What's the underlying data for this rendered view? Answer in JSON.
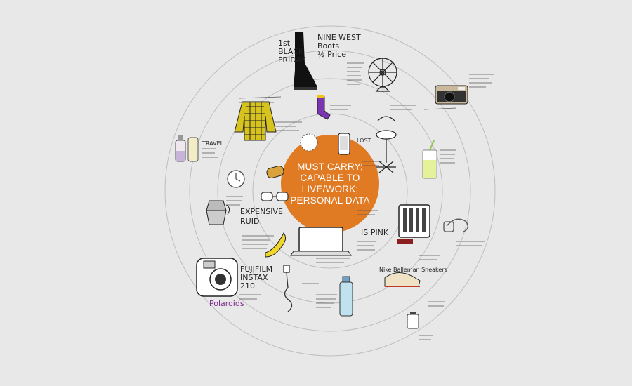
{
  "center": {
    "lines": [
      "MUST CARRY;",
      "CAPABLE TO",
      "LIVE/WORK;",
      "PERSONAL DATA"
    ],
    "color": "#e07a23"
  },
  "notes": {
    "boots_title": "NINE WEST\nBoots\n½ Price",
    "boots_side": "1st\nBLACK\nFRIDAY",
    "expensive": "EXPENSIVE",
    "pink": "IS PINK",
    "polaroids": "Polaroids",
    "ninewest_shoe": "Nike Balleman Sneakers",
    "fujifilm": "FUJIFILM\nINSTAX\n210",
    "travel": "TRAVEL",
    "ruid": "RUID",
    "lost": "LOST"
  },
  "colors": {
    "background": "#e8e8e8",
    "ring": "#bdbdbd",
    "center": "#e07a23",
    "ink": "#222222",
    "accent_purple": "#7a2a8a"
  }
}
